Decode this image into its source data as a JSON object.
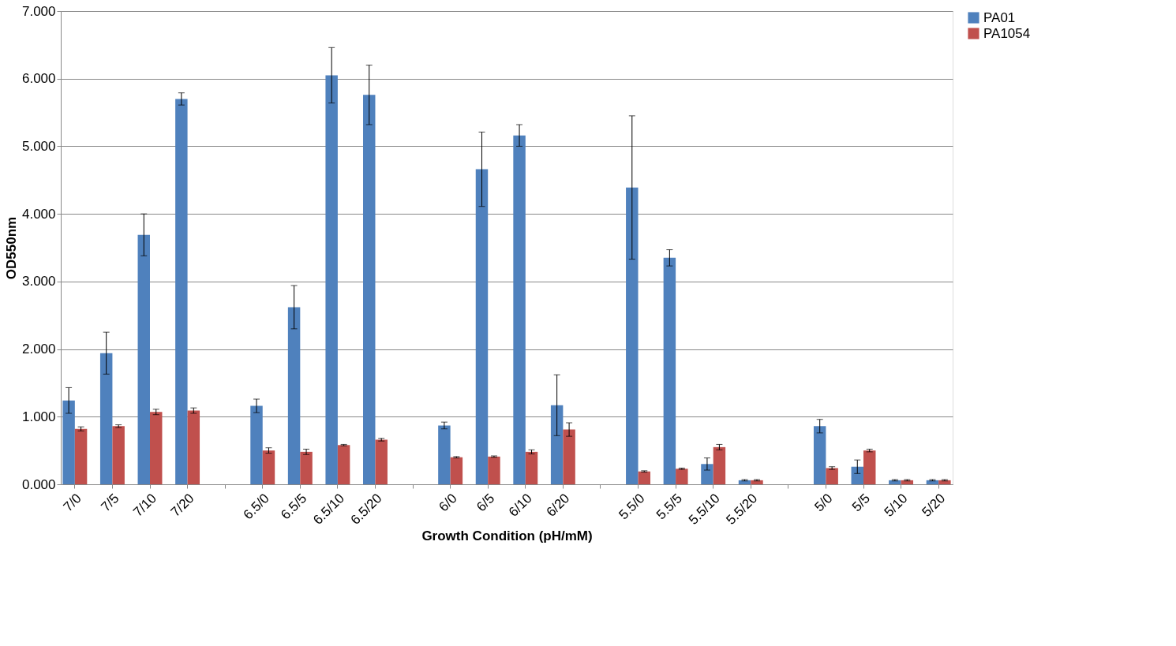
{
  "chart_data": {
    "type": "bar",
    "xlabel": "Growth Condition (pH/mM)",
    "ylabel": "OD550nm",
    "categories": [
      "7/0",
      "7/5",
      "7/10",
      "7/20",
      null,
      "6.5/0",
      "6.5/5",
      "6.5/10",
      "6.5/20",
      null,
      "6/0",
      "6/5",
      "6/10",
      "6/20",
      null,
      "5.5/0",
      "5.5/5",
      "5.5/10",
      "5.5/20",
      null,
      "5/0",
      "5/5",
      "5/10",
      "5/20"
    ],
    "series": [
      {
        "name": "PA01",
        "color": "#4f81bd",
        "values": [
          1.24,
          1.94,
          3.69,
          5.7,
          null,
          1.16,
          2.62,
          6.05,
          5.76,
          null,
          0.87,
          4.66,
          5.16,
          1.17,
          null,
          4.39,
          3.35,
          0.3,
          0.06,
          null,
          0.86,
          0.26,
          0.06,
          0.06
        ],
        "errors": [
          0.19,
          0.31,
          0.31,
          0.09,
          null,
          0.1,
          0.32,
          0.41,
          0.44,
          null,
          0.05,
          0.55,
          0.16,
          0.45,
          null,
          1.06,
          0.12,
          0.09,
          0.01,
          null,
          0.1,
          0.1,
          0.01,
          0.01
        ]
      },
      {
        "name": "PA1054",
        "color": "#c0504d",
        "values": [
          0.82,
          0.86,
          1.07,
          1.09,
          null,
          0.5,
          0.48,
          0.58,
          0.66,
          null,
          0.4,
          0.41,
          0.48,
          0.81,
          null,
          0.19,
          0.23,
          0.55,
          0.06,
          null,
          0.24,
          0.5,
          0.06,
          0.06
        ],
        "errors": [
          0.03,
          0.02,
          0.04,
          0.04,
          null,
          0.04,
          0.04,
          0.01,
          0.02,
          null,
          0.01,
          0.01,
          0.03,
          0.1,
          null,
          0.01,
          0.01,
          0.04,
          0.01,
          null,
          0.02,
          0.02,
          0.01,
          0.01
        ]
      }
    ],
    "ylim": [
      0,
      7
    ],
    "yticks": [
      {
        "value": 0,
        "label": "0.000"
      },
      {
        "value": 1,
        "label": "1.000"
      },
      {
        "value": 2,
        "label": "2.000"
      },
      {
        "value": 3,
        "label": "3.000"
      },
      {
        "value": 4,
        "label": "4.000"
      },
      {
        "value": 5,
        "label": "5.000"
      },
      {
        "value": 6,
        "label": "6.000"
      },
      {
        "value": 7,
        "label": "7.000"
      }
    ],
    "grid": "y",
    "legend": "right"
  }
}
